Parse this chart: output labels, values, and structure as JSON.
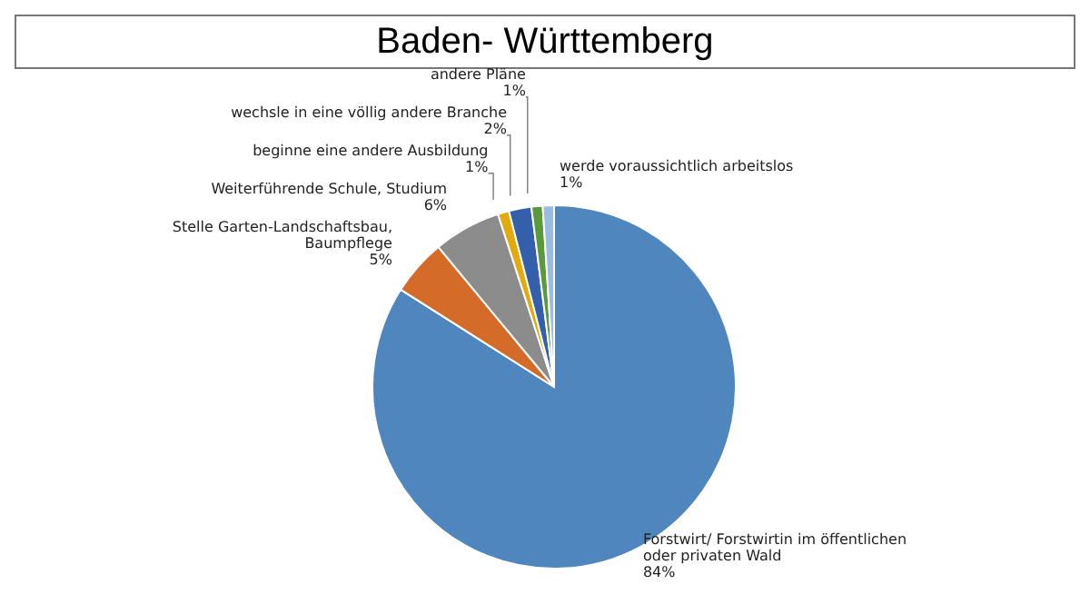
{
  "chart_data": {
    "type": "pie",
    "title": "Baden- Württemberg",
    "categories": [
      "Forstwirt/ Forstwirtin im öffentlichen oder privaten Wald",
      "Stelle Garten-Landschaftsbau, Baumpflege",
      "Weiterführende Schule, Studium",
      "beginne eine andere Ausbildung",
      "wechsle in eine völlig andere Branche",
      "andere Pläne",
      "werde voraussichtlich arbeitslos"
    ],
    "values": [
      84,
      5,
      6,
      1,
      2,
      1,
      1
    ],
    "value_labels": [
      "84%",
      "5%",
      "6%",
      "1%",
      "2%",
      "1%",
      "1%"
    ],
    "colors": [
      "#4f86bd",
      "#d46b28",
      "#8c8c8c",
      "#e2aa0a",
      "#345fab",
      "#5a9a3c",
      "#9bbbe0"
    ],
    "legend": false
  }
}
